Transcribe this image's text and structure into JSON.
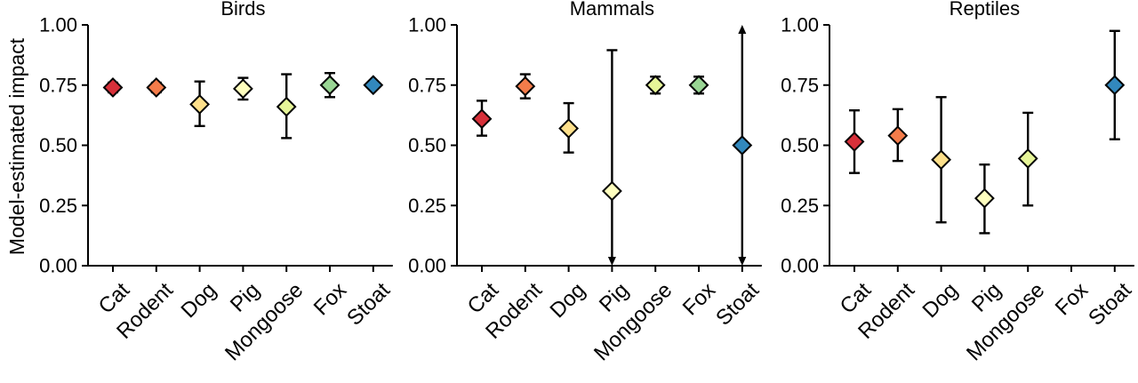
{
  "chart_data": {
    "type": "scatter",
    "ylabel": "Model-estimated impact",
    "ylim": [
      0,
      1
    ],
    "yticks": [
      "0.00",
      "0.25",
      "0.50",
      "0.75",
      "1.00"
    ],
    "categories": [
      "Cat",
      "Rodent",
      "Dog",
      "Pig",
      "Mongoose",
      "Fox",
      "Stoat"
    ],
    "category_colors": [
      "#d7303a",
      "#f47c4a",
      "#fee08b",
      "#ffffbf",
      "#e6f598",
      "#99d594",
      "#3288bd"
    ],
    "grid": false,
    "legend": "none",
    "panels": [
      {
        "title": "Birds",
        "points": [
          {
            "category": "Cat",
            "value": 0.74,
            "lower": 0.72,
            "upper": 0.76
          },
          {
            "category": "Rodent",
            "value": 0.74,
            "lower": 0.72,
            "upper": 0.76
          },
          {
            "category": "Dog",
            "value": 0.67,
            "lower": 0.58,
            "upper": 0.765
          },
          {
            "category": "Pig",
            "value": 0.735,
            "lower": 0.69,
            "upper": 0.78
          },
          {
            "category": "Mongoose",
            "value": 0.66,
            "lower": 0.53,
            "upper": 0.795
          },
          {
            "category": "Fox",
            "value": 0.75,
            "lower": 0.7,
            "upper": 0.8
          },
          {
            "category": "Stoat",
            "value": 0.75,
            "lower": 0.735,
            "upper": 0.765
          }
        ]
      },
      {
        "title": "Mammals",
        "points": [
          {
            "category": "Cat",
            "value": 0.61,
            "lower": 0.54,
            "upper": 0.685
          },
          {
            "category": "Rodent",
            "value": 0.745,
            "lower": 0.695,
            "upper": 0.795
          },
          {
            "category": "Dog",
            "value": 0.57,
            "lower": 0.47,
            "upper": 0.675
          },
          {
            "category": "Pig",
            "value": 0.31,
            "lower": 0.0,
            "upper": 0.895,
            "lower_arrow": true
          },
          {
            "category": "Mongoose",
            "value": 0.75,
            "lower": 0.715,
            "upper": 0.785
          },
          {
            "category": "Fox",
            "value": 0.75,
            "lower": 0.715,
            "upper": 0.785
          },
          {
            "category": "Stoat",
            "value": 0.5,
            "lower": 0.0,
            "upper": 1.0,
            "lower_arrow": true,
            "upper_arrow": true
          }
        ]
      },
      {
        "title": "Reptiles",
        "points": [
          {
            "category": "Cat",
            "value": 0.515,
            "lower": 0.385,
            "upper": 0.645
          },
          {
            "category": "Rodent",
            "value": 0.54,
            "lower": 0.435,
            "upper": 0.65
          },
          {
            "category": "Dog",
            "value": 0.44,
            "lower": 0.18,
            "upper": 0.7
          },
          {
            "category": "Pig",
            "value": 0.28,
            "lower": 0.135,
            "upper": 0.42
          },
          {
            "category": "Mongoose",
            "value": 0.445,
            "lower": 0.25,
            "upper": 0.635
          },
          {
            "category": "Fox",
            "value": null
          },
          {
            "category": "Stoat",
            "value": 0.75,
            "lower": 0.525,
            "upper": 0.975
          }
        ]
      }
    ]
  }
}
